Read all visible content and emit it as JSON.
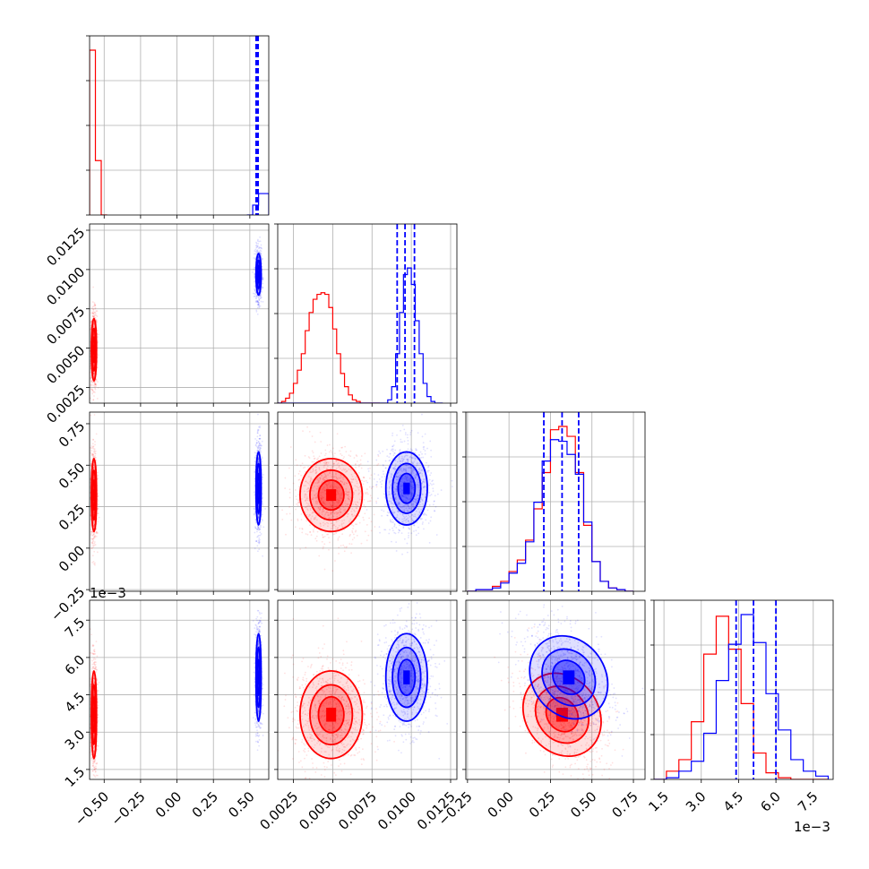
{
  "chart_data": {
    "type": "corner",
    "title": "",
    "parameters": [
      "",
      "",
      "",
      ""
    ],
    "grid": true,
    "legend": "none",
    "colors": {
      "red": "#ff0000",
      "blue": "#0000ff",
      "grid": "#b0b0b0"
    },
    "axis_ranges": [
      [
        -0.6,
        0.63
      ],
      [
        0.0015,
        0.0129
      ],
      [
        -0.26,
        0.82
      ],
      [
        0.0011,
        0.0083
      ]
    ],
    "tick_labels": {
      "p0": [
        "−0.50",
        "−0.25",
        "0.00",
        "0.25",
        "0.50"
      ],
      "p1": [
        "0.0025",
        "0.0050",
        "0.0075",
        "0.0100",
        "0.0125"
      ],
      "p2": [
        "−0.25",
        "0.00",
        "0.25",
        "0.50",
        "0.75"
      ],
      "p3": [
        "1.5",
        "3.0",
        "4.5",
        "6.0",
        "7.5"
      ]
    },
    "offset_text": [
      "1e−3",
      "1e−3"
    ],
    "series": [
      {
        "color": "#ff0000",
        "centers": [
          -0.57,
          0.0049,
          0.32,
          0.0037
        ],
        "spreads": [
          0.008,
          0.0009,
          0.1,
          0.0008
        ],
        "histograms": [
          {
            "bins": [
              -0.6,
              -0.56,
              -0.52,
              -0.48
            ],
            "counts": [
              1.0,
              0.33,
              0.0
            ]
          },
          {
            "bins": [
              0.0015,
              0.00175,
              0.002,
              0.00225,
              0.0025,
              0.00275,
              0.003,
              0.00325,
              0.0035,
              0.00375,
              0.004,
              0.00425,
              0.0045,
              0.00475,
              0.005,
              0.00525,
              0.0055,
              0.00575,
              0.006,
              0.00625,
              0.0065,
              0.00675,
              0.007,
              0.00725,
              0.0075,
              0.00775,
              0.008
            ],
            "counts": [
              0,
              0.01,
              0.03,
              0.06,
              0.12,
              0.2,
              0.3,
              0.44,
              0.55,
              0.63,
              0.66,
              0.67,
              0.66,
              0.58,
              0.45,
              0.3,
              0.18,
              0.1,
              0.05,
              0.02,
              0.01,
              0,
              0,
              0,
              0,
              0
            ]
          },
          {
            "bins": [
              -0.25,
              -0.2,
              -0.15,
              -0.1,
              -0.05,
              0.0,
              0.05,
              0.1,
              0.15,
              0.2,
              0.25,
              0.3,
              0.35,
              0.4,
              0.45,
              0.5,
              0.55,
              0.6,
              0.65,
              0.7,
              0.75
            ],
            "counts": [
              0,
              0.01,
              0.01,
              0.03,
              0.06,
              0.12,
              0.19,
              0.31,
              0.5,
              0.72,
              0.98,
              1.0,
              0.94,
              0.72,
              0.4,
              0.18,
              0.06,
              0.02,
              0.01,
              0.0
            ]
          },
          {
            "bins": [
              0.0011,
              0.0016,
              0.0021,
              0.0026,
              0.0031,
              0.0036,
              0.0041,
              0.0046,
              0.0051,
              0.0056,
              0.0061,
              0.0066,
              0.0071,
              0.0076,
              0.0081
            ],
            "counts": [
              0,
              0.05,
              0.12,
              0.35,
              0.76,
              0.99,
              0.79,
              0.46,
              0.16,
              0.04,
              0.01,
              0,
              0,
              0
            ]
          }
        ]
      },
      {
        "color": "#0000ff",
        "centers": [
          0.56,
          0.0097,
          0.36,
          0.0052
        ],
        "spreads": [
          0.008,
          0.0006,
          0.1,
          0.0008
        ],
        "histograms": [
          {
            "bins": [
              0.48,
              0.52,
              0.56,
              0.6,
              0.63
            ],
            "counts": [
              0.0,
              0.06,
              0.13,
              0.13
            ]
          },
          {
            "bins": [
              0.0015,
              0.00175,
              0.002,
              0.00225,
              0.0025,
              0.00275,
              0.003,
              0.00325,
              0.0035,
              0.00375,
              0.004,
              0.00425,
              0.0045,
              0.00475,
              0.005,
              0.00525,
              0.0055,
              0.00575,
              0.006,
              0.00625,
              0.0065,
              0.00675,
              0.007,
              0.00725,
              0.0075,
              0.00775,
              0.008,
              0.00825,
              0.0085,
              0.00875,
              0.009,
              0.00925,
              0.0095,
              0.00975,
              0.01,
              0.01025,
              0.0105,
              0.01075,
              0.011,
              0.01125,
              0.0115,
              0.01175,
              0.012
            ],
            "counts": [
              0,
              0,
              0,
              0,
              0,
              0,
              0,
              0,
              0,
              0,
              0,
              0,
              0,
              0,
              0,
              0,
              0,
              0,
              0,
              0,
              0,
              0,
              0,
              0,
              0,
              0,
              0,
              0,
              0.02,
              0.1,
              0.3,
              0.55,
              0.78,
              0.82,
              0.72,
              0.5,
              0.3,
              0.12,
              0.04,
              0.01,
              0,
              0
            ]
          },
          {
            "bins": [
              -0.25,
              -0.2,
              -0.15,
              -0.1,
              -0.05,
              0.0,
              0.05,
              0.1,
              0.15,
              0.2,
              0.25,
              0.3,
              0.35,
              0.4,
              0.45,
              0.5,
              0.55,
              0.6,
              0.65,
              0.7,
              0.75
            ],
            "counts": [
              0,
              0.01,
              0.01,
              0.02,
              0.05,
              0.11,
              0.17,
              0.3,
              0.54,
              0.79,
              0.92,
              0.91,
              0.83,
              0.71,
              0.42,
              0.18,
              0.06,
              0.02,
              0.01,
              0.0
            ]
          },
          {
            "bins": [
              0.0011,
              0.0016,
              0.0021,
              0.0026,
              0.0031,
              0.0036,
              0.0041,
              0.0046,
              0.0051,
              0.0056,
              0.0061,
              0.0066,
              0.0071,
              0.0076,
              0.0081
            ],
            "counts": [
              0,
              0.01,
              0.05,
              0.11,
              0.28,
              0.6,
              0.82,
              1.0,
              0.83,
              0.52,
              0.3,
              0.12,
              0.05,
              0.02
            ]
          }
        ]
      }
    ],
    "quantile_lines": [
      [
        0.543,
        0.55,
        0.557
      ],
      [
        0.0091,
        0.0096,
        0.0102
      ],
      [
        0.21,
        0.32,
        0.42
      ],
      [
        0.0044,
        0.0051,
        0.006
      ]
    ]
  }
}
